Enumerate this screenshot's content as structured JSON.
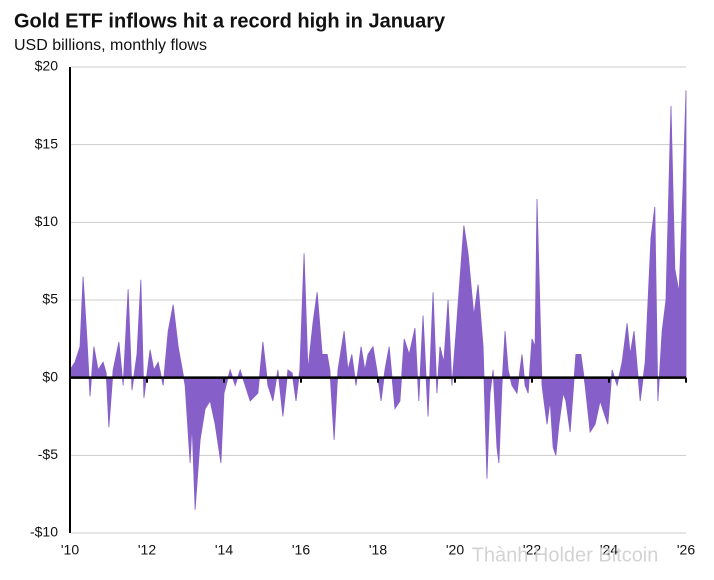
{
  "chart_data": {
    "type": "area",
    "title": "Gold ETF inflows hit a record high in January",
    "subtitle": "USD billions, monthly flows",
    "watermark": "Thành Holder Bitcoin",
    "color": "#8660c8",
    "grid": true,
    "xlim": [
      2010,
      2026
    ],
    "xticks": [
      {
        "value": 2010,
        "label": "'10"
      },
      {
        "value": 2012,
        "label": "'12"
      },
      {
        "value": 2014,
        "label": "'14"
      },
      {
        "value": 2016,
        "label": "'16"
      },
      {
        "value": 2018,
        "label": "'18"
      },
      {
        "value": 2020,
        "label": "'20"
      },
      {
        "value": 2022,
        "label": "'22"
      },
      {
        "value": 2024,
        "label": "'24"
      },
      {
        "value": 2026,
        "label": "'26"
      }
    ],
    "ylim": [
      -10,
      20
    ],
    "yticks": [
      {
        "value": -10,
        "label": "-$10"
      },
      {
        "value": -5,
        "label": "-$5"
      },
      {
        "value": 0,
        "label": "$0"
      },
      {
        "value": 5,
        "label": "$5"
      },
      {
        "value": 10,
        "label": "$10"
      },
      {
        "value": 15,
        "label": "$15"
      },
      {
        "value": 20,
        "label": "$20"
      }
    ],
    "x": [
      2010.0,
      2010.13,
      2010.26,
      2010.34,
      2010.44,
      2010.52,
      2010.62,
      2010.73,
      2010.86,
      2010.94,
      2011.01,
      2011.12,
      2011.27,
      2011.38,
      2011.51,
      2011.61,
      2011.74,
      2011.84,
      2011.92,
      2012.08,
      2012.18,
      2012.29,
      2012.42,
      2012.55,
      2012.68,
      2012.81,
      2012.99,
      2013.12,
      2013.17,
      2013.25,
      2013.38,
      2013.51,
      2013.64,
      2013.77,
      2013.92,
      2014.0,
      2014.16,
      2014.29,
      2014.42,
      2014.55,
      2014.68,
      2014.88,
      2015.01,
      2015.14,
      2015.27,
      2015.4,
      2015.53,
      2015.66,
      2015.77,
      2015.87,
      2015.97,
      2016.08,
      2016.18,
      2016.31,
      2016.42,
      2016.55,
      2016.68,
      2016.75,
      2016.86,
      2016.96,
      2017.12,
      2017.22,
      2017.32,
      2017.43,
      2017.56,
      2017.66,
      2017.74,
      2017.87,
      2017.97,
      2018.08,
      2018.18,
      2018.29,
      2018.44,
      2018.57,
      2018.68,
      2018.81,
      2018.96,
      2019.06,
      2019.17,
      2019.3,
      2019.43,
      2019.53,
      2019.61,
      2019.71,
      2019.82,
      2019.92,
      2020.03,
      2020.23,
      2020.34,
      2020.49,
      2020.6,
      2020.73,
      2020.83,
      2020.91,
      2020.99,
      2021.09,
      2021.14,
      2021.22,
      2021.3,
      2021.38,
      2021.48,
      2021.61,
      2021.74,
      2021.82,
      2021.9,
      2022.0,
      2022.08,
      2022.13,
      2022.26,
      2022.39,
      2022.47,
      2022.55,
      2022.62,
      2022.7,
      2022.81,
      2022.88,
      2022.99,
      2023.14,
      2023.27,
      2023.38,
      2023.51,
      2023.64,
      2023.77,
      2023.9,
      2023.97,
      2024.08,
      2024.21,
      2024.34,
      2024.47,
      2024.55,
      2024.65,
      2024.81,
      2024.94,
      2025.09,
      2025.19,
      2025.27,
      2025.38,
      2025.48,
      2025.61,
      2025.71,
      2025.82,
      2025.92,
      2026.0
    ],
    "values": [
      0.5,
      1.0,
      2.0,
      6.5,
      2.5,
      -1.2,
      2.0,
      0.5,
      1.0,
      0.3,
      -3.2,
      0.5,
      2.3,
      -0.5,
      5.7,
      -0.8,
      1.5,
      6.3,
      -1.3,
      1.8,
      0.5,
      1.0,
      -0.5,
      3.0,
      4.7,
      2.0,
      -0.5,
      -5.5,
      -3.0,
      -8.5,
      -4.0,
      -2.0,
      -1.5,
      -3.0,
      -5.5,
      -1.0,
      0.5,
      -0.5,
      0.5,
      -0.5,
      -1.5,
      -1.0,
      2.3,
      -0.5,
      -1.5,
      0.5,
      -2.5,
      0.5,
      0.3,
      -1.5,
      0.5,
      8.0,
      0.5,
      3.5,
      5.5,
      1.5,
      1.5,
      0.5,
      -4.0,
      0.5,
      3.0,
      0.5,
      1.5,
      -0.5,
      2.0,
      0.5,
      1.5,
      2.0,
      0.5,
      -1.5,
      0.5,
      2.0,
      -2.0,
      -1.5,
      2.5,
      1.5,
      3.2,
      -1.5,
      4.0,
      -2.5,
      5.5,
      -1.0,
      2.0,
      1.0,
      5.0,
      -0.5,
      3.0,
      9.8,
      8.0,
      4.0,
      6.0,
      2.0,
      -6.5,
      -1.0,
      0.5,
      -4.5,
      -5.5,
      -0.5,
      3.0,
      0.5,
      -0.5,
      -1.0,
      1.5,
      -0.5,
      -1.0,
      2.5,
      2.0,
      11.5,
      -0.5,
      -3.0,
      -1.5,
      -4.5,
      -5.0,
      -3.0,
      -1.0,
      -1.5,
      -3.5,
      1.5,
      1.5,
      -0.5,
      -3.5,
      -3.0,
      -1.5,
      -2.5,
      -3.0,
      0.5,
      -0.5,
      1.0,
      3.5,
      1.5,
      3.0,
      -1.5,
      1.0,
      9.0,
      11.0,
      -1.5,
      3.0,
      5.0,
      17.5,
      7.0,
      5.5,
      12.0,
      18.5
    ]
  }
}
